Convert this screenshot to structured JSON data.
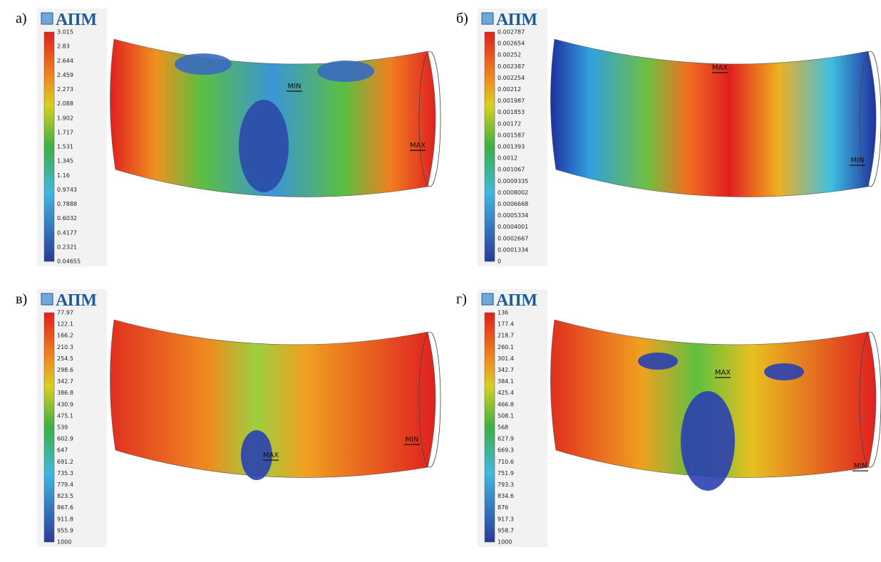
{
  "panels": [
    {
      "label": "а)",
      "logo": "АПМ",
      "legend": [
        "3.015",
        "2.83",
        "2.644",
        "2.459",
        "2.273",
        "2.088",
        "1.902",
        "1.717",
        "1.531",
        "1.345",
        "1.16",
        "0.9743",
        "0.7888",
        "0.6032",
        "0.4177",
        "0.2321",
        "0.04655"
      ],
      "markers": [
        {
          "text": "MIN"
        },
        {
          "text": "MAX"
        }
      ]
    },
    {
      "label": "б)",
      "logo": "АПМ",
      "legend": [
        "0.002787",
        "0.002654",
        "0.00252",
        "0.002387",
        "0.002254",
        "0.00212",
        "0.001987",
        "0.001853",
        "0.00172",
        "0.001587",
        "0.001393",
        "0.0012",
        "0.001067",
        "0.0009335",
        "0.0008002",
        "0.0006668",
        "0.0005334",
        "0.0004001",
        "0.0002667",
        "0.0001334",
        "0"
      ],
      "markers": [
        {
          "text": "MAX"
        },
        {
          "text": "MIN"
        }
      ]
    },
    {
      "label": "в)",
      "logo": "АПМ",
      "legend": [
        "77.97",
        "122.1",
        "166.2",
        "210.3",
        "254.5",
        "298.6",
        "342.7",
        "386.8",
        "430.9",
        "475.1",
        "539",
        "602.9",
        "647",
        "691.2",
        "735.3",
        "779.4",
        "823.5",
        "867.6",
        "911.8",
        "955.9",
        "1000"
      ],
      "markers": [
        {
          "text": "MIN"
        },
        {
          "text": "MAX"
        }
      ]
    },
    {
      "label": "г)",
      "logo": "АПМ",
      "legend": [
        "136",
        "177.4",
        "218.7",
        "260.1",
        "301.4",
        "342.7",
        "384.1",
        "425.4",
        "466.8",
        "508.1",
        "568",
        "627.9",
        "669.3",
        "710.6",
        "751.9",
        "793.3",
        "834.6",
        "876",
        "917.3",
        "958.7",
        "1000"
      ],
      "markers": [
        {
          "text": "MAX"
        },
        {
          "text": "MIN"
        }
      ]
    }
  ]
}
